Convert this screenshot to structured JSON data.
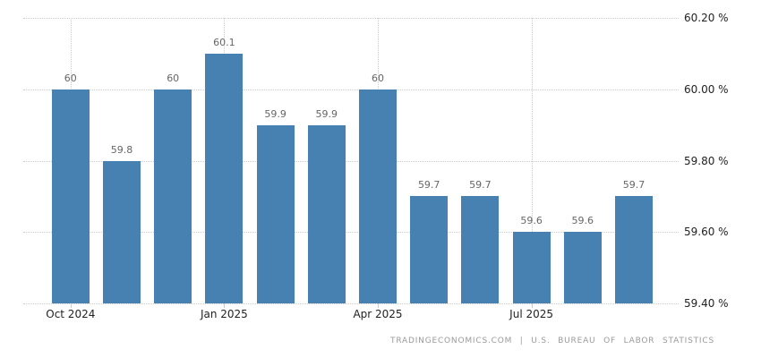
{
  "chart_data": {
    "type": "bar",
    "title": "",
    "xlabel": "",
    "ylabel": "",
    "values": [
      60,
      59.8,
      60,
      60.1,
      59.9,
      59.9,
      60,
      59.7,
      59.7,
      59.6,
      59.6,
      59.7
    ],
    "bar_labels": [
      "60",
      "59.8",
      "60",
      "60.1",
      "59.9",
      "59.9",
      "60",
      "59.7",
      "59.7",
      "59.6",
      "59.6",
      "59.7"
    ],
    "x_tick_labels": [
      "Oct 2024",
      "Jan 2025",
      "Apr 2025",
      "Jul 2025"
    ],
    "x_tick_bar_indices": [
      0,
      3,
      6,
      9
    ],
    "y_tick_labels": [
      "60.20 %",
      "60.00 %",
      "59.80 %",
      "59.60 %",
      "59.40 %"
    ],
    "y_tick_values": [
      60.2,
      60.0,
      59.8,
      59.6,
      59.4
    ],
    "ylim": [
      59.4,
      60.2
    ],
    "grid": true,
    "legend": "none",
    "bar_color": "#4781b2",
    "bar_label_color": "#666666",
    "axis_text_color": "#222222",
    "gridline_color": "#cccccc"
  },
  "footer": {
    "attribution": "TRADINGECONOMICS.COM | U.S. BUREAU OF LABOR STATISTICS"
  }
}
